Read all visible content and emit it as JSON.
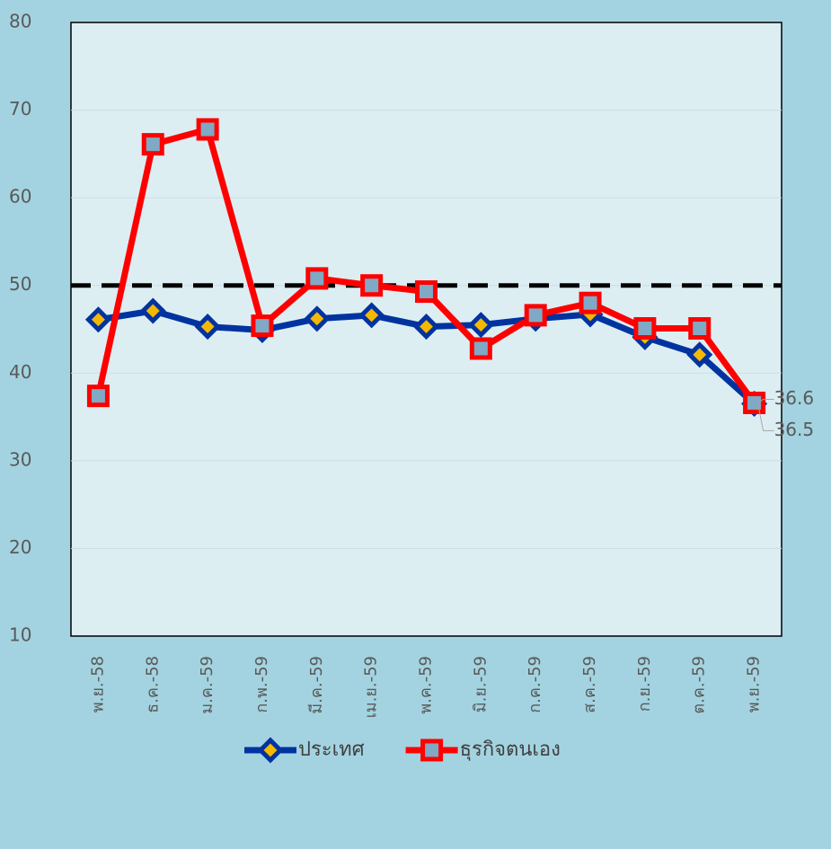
{
  "chart_data": {
    "type": "line",
    "categories": [
      "พ.ย.-58",
      "ธ.ค.-58",
      "ม.ค.-59",
      "ก.พ.-59",
      "มี.ค.-59",
      "เม.ย.-59",
      "พ.ค.-59",
      "มิ.ย.-59",
      "ก.ค.-59",
      "ส.ค.-59",
      "ก.ย.-59",
      "ต.ค.-59",
      "พ.ย.-59"
    ],
    "series": [
      {
        "name": "ประเทศ",
        "color": "#0033a0",
        "marker": "diamond",
        "marker_color": "#f5b800",
        "values": [
          46.1,
          47.1,
          45.3,
          44.9,
          46.2,
          46.6,
          45.3,
          45.5,
          46.2,
          46.7,
          44.1,
          42.1,
          36.5
        ],
        "value_labels": [
          null,
          null,
          null,
          null,
          null,
          null,
          null,
          null,
          null,
          null,
          null,
          null,
          "36.5"
        ]
      },
      {
        "name": "ธุรกิจตนเอง",
        "color": "#ff0000",
        "marker": "square",
        "marker_color": "#7fa9c4",
        "values": [
          37.4,
          66.1,
          67.8,
          45.4,
          50.8,
          50.0,
          49.3,
          42.8,
          46.6,
          48.0,
          45.1,
          45.1,
          36.6
        ],
        "value_labels": [
          null,
          null,
          null,
          null,
          null,
          null,
          null,
          null,
          null,
          null,
          null,
          null,
          "36.6"
        ]
      }
    ],
    "reference_line": 50,
    "ylim": [
      10,
      80
    ],
    "yticks": [
      10,
      20,
      30,
      40,
      50,
      60,
      70,
      80
    ],
    "grid": true,
    "legend": "bottom"
  }
}
